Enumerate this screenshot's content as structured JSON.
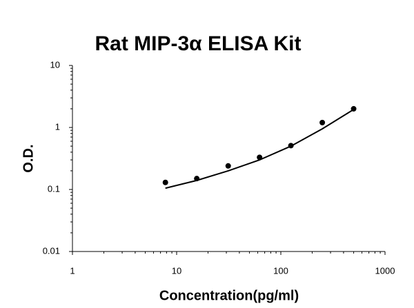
{
  "chart_data": {
    "type": "scatter",
    "title": "Rat MIP-3α ELISA Kit",
    "x_label": "Concentration(pg/ml)",
    "y_label": "O.D.",
    "log_x": true,
    "log_y": true,
    "xlim": [
      1,
      1000
    ],
    "xticks": [
      1,
      10,
      100,
      1000
    ],
    "ylim": [
      0.01,
      10
    ],
    "yticks": [
      0.01,
      0.1,
      1,
      10
    ],
    "series": [
      {
        "type": "scatter",
        "color": "#000000",
        "x": [
          7.8,
          15.6,
          31.25,
          62.5,
          125,
          250,
          500
        ],
        "values": [
          0.13,
          0.15,
          0.24,
          0.33,
          0.51,
          1.2,
          2.0
        ]
      },
      {
        "type": "line",
        "color": "#000000",
        "x": [
          7.8,
          15.6,
          31.25,
          62.5,
          125,
          250,
          500
        ],
        "values": [
          0.105,
          0.14,
          0.2,
          0.3,
          0.5,
          0.95,
          1.95
        ]
      }
    ]
  }
}
